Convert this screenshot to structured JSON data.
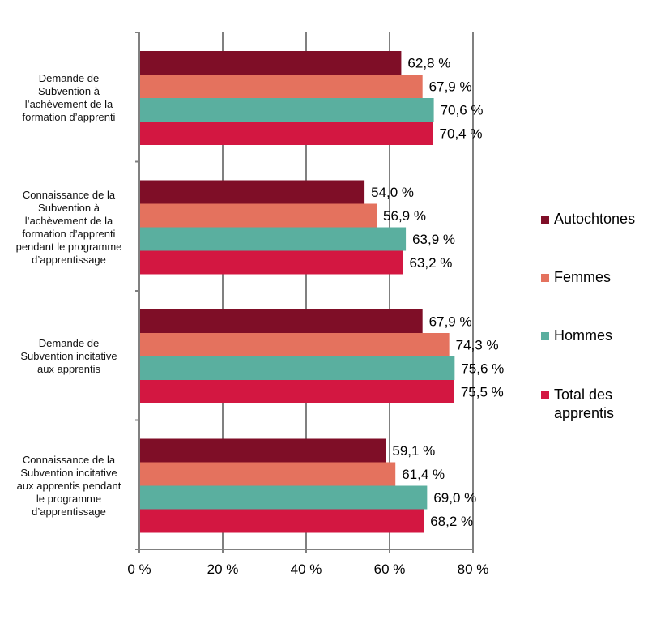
{
  "chart_data": {
    "type": "bar",
    "orientation": "horizontal",
    "categories": [
      "Demande de Subvention à l’achèvement de la formation d’apprenti",
      "Connaissance de la Subvention à l’achèvement de la formation d’apprenti pendant le programme d’apprentissage",
      "Demande de Subvention incitative aux apprentis",
      "Connaissance de la Subvention incitative aux apprentis pendant le programme d’apprentissage"
    ],
    "category_lines": [
      [
        "Demande de",
        "Subvention à",
        "l’achèvement de la",
        "formation d’apprenti"
      ],
      [
        "Connaissance de la",
        "Subvention à",
        "l’achèvement de la",
        "formation d’apprenti",
        "pendant le programme",
        "d’apprentissage"
      ],
      [
        "Demande de",
        "Subvention incitative",
        "aux apprentis"
      ],
      [
        "Connaissance de la",
        "Subvention incitative",
        "aux apprentis pendant",
        "le programme",
        "d’apprentissage"
      ]
    ],
    "series": [
      {
        "name": "Autochtones",
        "color": "#7f0e27",
        "values": [
          62.8,
          54.0,
          67.9,
          59.1
        ],
        "labels": [
          "62,8 %",
          "54,0 %",
          "67,9 %",
          "59,1 %"
        ]
      },
      {
        "name": "Femmes",
        "color": "#e4725e",
        "values": [
          67.9,
          56.9,
          74.3,
          61.4
        ],
        "labels": [
          "67,9 %",
          "56,9 %",
          "74,3 %",
          "61,4 %"
        ]
      },
      {
        "name": "Hommes",
        "color": "#5aaf9f",
        "values": [
          70.6,
          63.9,
          75.6,
          69.0
        ],
        "labels": [
          "70,6 %",
          "63,9 %",
          "75,6 %",
          "69,0 %"
        ]
      },
      {
        "name": "Total des apprentis",
        "color": "#d31741",
        "values": [
          70.4,
          63.2,
          75.5,
          68.2
        ],
        "labels": [
          "70,4 %",
          "63,2 %",
          "75,5 %",
          "68,2 %"
        ]
      }
    ],
    "legend_lines": [
      [
        "Autochtones"
      ],
      [
        "Femmes"
      ],
      [
        "Hommes"
      ],
      [
        "Total des",
        "apprentis"
      ]
    ],
    "xlim": [
      0,
      80
    ],
    "x_ticks": [
      0,
      20,
      40,
      60,
      80
    ],
    "x_tick_labels": [
      "0 %",
      "20 %",
      "40 %",
      "60 %",
      "80 %"
    ],
    "grid": "vertical",
    "gridline_color": "#808080",
    "legend_position": "right"
  }
}
